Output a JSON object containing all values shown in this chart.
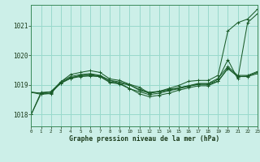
{
  "background_color": "#ccefe8",
  "grid_color": "#99d9cc",
  "line_color": "#1a5c2a",
  "xlabel": "Graphe pression niveau de la mer (hPa)",
  "ylim": [
    1017.6,
    1021.7
  ],
  "xlim": [
    0,
    23
  ],
  "yticks": [
    1018,
    1019,
    1020,
    1021
  ],
  "xticks": [
    0,
    1,
    2,
    3,
    4,
    5,
    6,
    7,
    8,
    9,
    10,
    11,
    12,
    13,
    14,
    15,
    16,
    17,
    18,
    19,
    20,
    21,
    22,
    23
  ],
  "series": [
    [
      1018.0,
      1018.75,
      1018.75,
      1019.05,
      1019.25,
      1019.3,
      1019.35,
      1019.3,
      1019.15,
      1019.05,
      1019.0,
      1018.82,
      1018.72,
      1018.77,
      1018.82,
      1018.9,
      1018.97,
      1019.02,
      1019.02,
      1019.18,
      1019.85,
      1019.2,
      1021.1,
      1021.4
    ],
    [
      1018.75,
      1018.72,
      1018.77,
      1019.05,
      1019.22,
      1019.28,
      1019.3,
      1019.28,
      1019.1,
      1019.05,
      1018.88,
      1018.7,
      1018.6,
      1018.65,
      1018.72,
      1018.82,
      1018.9,
      1018.97,
      1018.97,
      1019.12,
      1019.55,
      1019.28,
      1019.3,
      1019.42
    ],
    [
      1018.75,
      1018.72,
      1018.77,
      1019.1,
      1019.28,
      1019.35,
      1019.38,
      1019.32,
      1019.15,
      1019.1,
      1019.0,
      1018.85,
      1018.75,
      1018.78,
      1018.85,
      1018.9,
      1018.97,
      1019.05,
      1019.05,
      1019.22,
      1019.62,
      1019.32,
      1019.32,
      1019.45
    ],
    [
      1018.75,
      1018.68,
      1018.72,
      1019.08,
      1019.22,
      1019.32,
      1019.32,
      1019.28,
      1019.08,
      1019.03,
      1018.87,
      1018.77,
      1018.67,
      1018.72,
      1018.8,
      1018.87,
      1018.95,
      1019.02,
      1019.02,
      1019.12,
      1019.57,
      1019.28,
      1019.28,
      1019.38
    ],
    [
      1018.0,
      1018.7,
      1018.7,
      1019.1,
      1019.35,
      1019.42,
      1019.48,
      1019.42,
      1019.2,
      1019.15,
      1019.02,
      1018.92,
      1018.72,
      1018.78,
      1018.88,
      1018.98,
      1019.12,
      1019.15,
      1019.15,
      1019.32,
      1020.82,
      1021.1,
      1021.22,
      1021.55
    ]
  ]
}
